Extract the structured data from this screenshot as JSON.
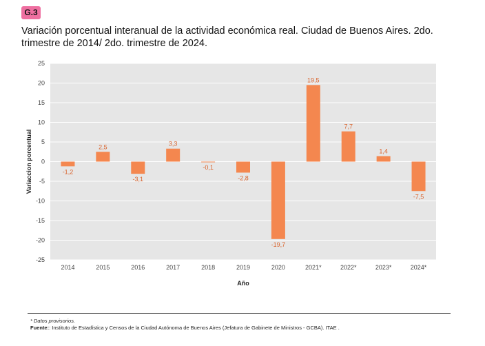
{
  "badge": {
    "label": "G.3",
    "color": "#ee6fa0"
  },
  "chart_data": {
    "type": "bar",
    "title": "Variación porcentual interanual de la actividad económica real. Ciudad de Buenos Aires. 2do. trimestre de 2014/ 2do. trimestre de 2024.",
    "xlabel": "Año",
    "ylabel": "Variaccion porcentual",
    "ylim": [
      -25,
      25
    ],
    "yticks": [
      25,
      20,
      15,
      10,
      5,
      0,
      -5,
      -10,
      -15,
      -20,
      -25
    ],
    "grid": true,
    "categories": [
      "2014",
      "2015",
      "2016",
      "2017",
      "2018",
      "2019",
      "2020",
      "2021*",
      "2022*",
      "2023*",
      "2024*"
    ],
    "values": [
      -1.2,
      2.5,
      -3.1,
      3.3,
      -0.1,
      -2.8,
      -19.7,
      19.5,
      7.7,
      1.4,
      -7.5
    ],
    "value_labels": [
      "-1,2",
      "2,5",
      "-3,1",
      "3,3",
      "-0,1",
      "-2,8",
      "-19,7",
      "19,5",
      "7,7",
      "1,4",
      "-7,5"
    ],
    "bar_color": "#f4874f",
    "label_color": "#d9632c",
    "background_color": "#e6e6e6"
  },
  "footer": {
    "note": "* Datos provisorios.",
    "source_label": "Fuente:",
    "source_text": ": Instituto de Estadística y Censos de la Ciudad Autónoma de Buenos Aires (Jefatura de Gabinete de Ministros - GCBA). ITAE ."
  }
}
